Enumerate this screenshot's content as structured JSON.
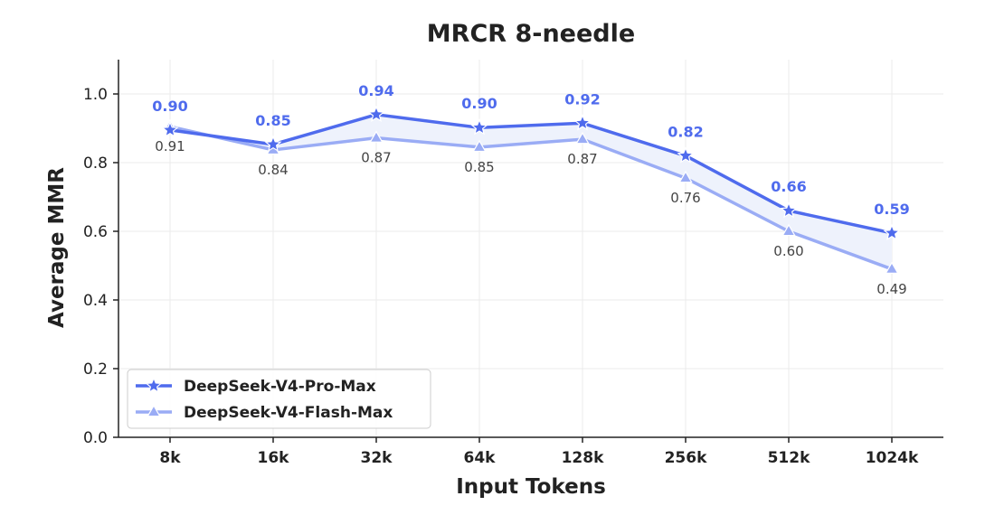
{
  "chart_data": {
    "type": "line",
    "title": "MRCR 8-needle",
    "xlabel": "Input Tokens",
    "ylabel": "Average MMR",
    "categories": [
      "8k",
      "16k",
      "32k",
      "64k",
      "128k",
      "256k",
      "512k",
      "1024k"
    ],
    "ylim": [
      0,
      1.1
    ],
    "yticks": [
      "0.0",
      "0.2",
      "0.4",
      "0.6",
      "0.8",
      "1.0"
    ],
    "grid": true,
    "legend_position": "bottom-left",
    "series": [
      {
        "name": "DeepSeek-V4-Pro-Max",
        "marker": "star",
        "color": "#4f6bed",
        "values": [
          0.895,
          0.853,
          0.94,
          0.902,
          0.915,
          0.82,
          0.66,
          0.595
        ],
        "labels": [
          "0.90",
          "0.85",
          "0.94",
          "0.90",
          "0.92",
          "0.82",
          "0.66",
          "0.59"
        ]
      },
      {
        "name": "DeepSeek-V4-Flash-Max",
        "marker": "triangle",
        "color": "#9aacf5",
        "values": [
          0.905,
          0.837,
          0.872,
          0.845,
          0.868,
          0.755,
          0.6,
          0.49
        ],
        "labels": [
          "0.91",
          "0.84",
          "0.87",
          "0.85",
          "0.87",
          "0.76",
          "0.60",
          "0.49"
        ]
      }
    ],
    "fill_between_color": "#eef2fc"
  }
}
